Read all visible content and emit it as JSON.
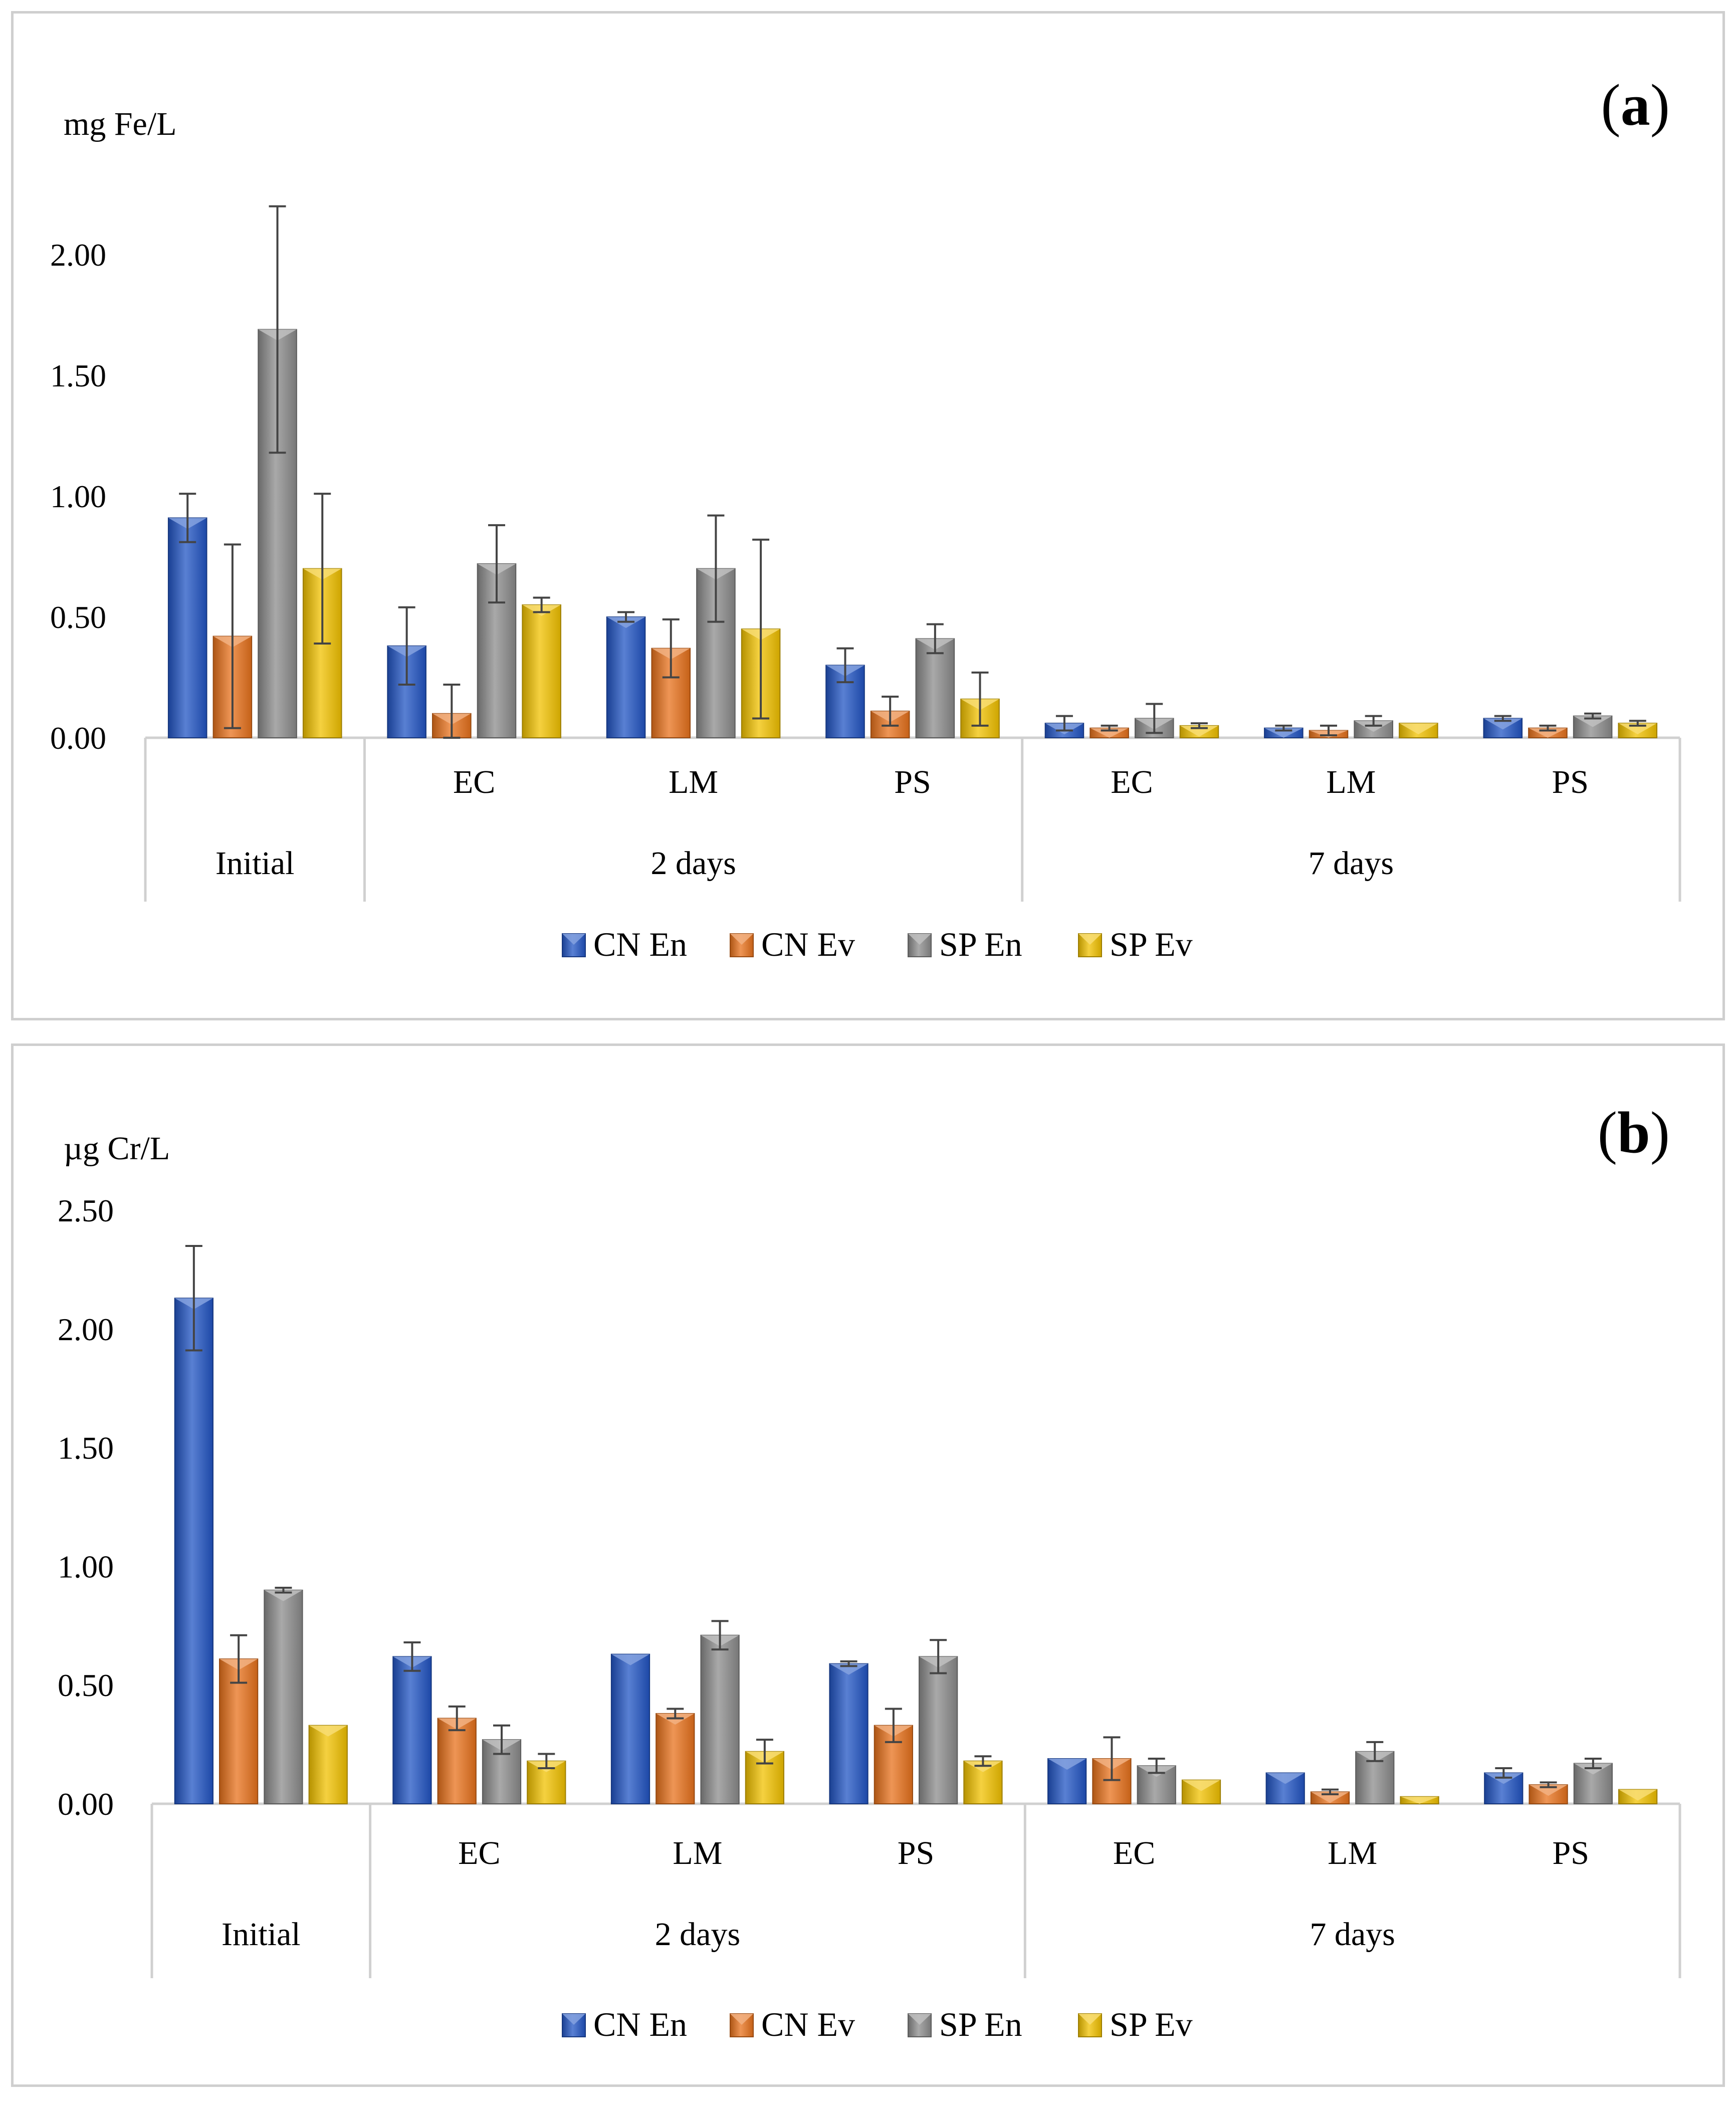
{
  "chart_data": [
    {
      "type": "bar",
      "panel_label": "(a)",
      "panel_letter": "a",
      "ylabel": "mg Fe/L",
      "ylim": [
        0,
        2.0
      ],
      "yticks": [
        "0.00",
        "0.50",
        "1.00",
        "1.50",
        "2.00"
      ],
      "categories": [
        "Initial",
        "2 days EC",
        "2 days LM",
        "2 days PS",
        "7 days EC",
        "7 days LM",
        "7 days PS"
      ],
      "category_labels": [
        "",
        "EC",
        "LM",
        "PS",
        "EC",
        "LM",
        "PS"
      ],
      "groups": [
        "Initial",
        "2 days",
        "7 days"
      ],
      "series": [
        {
          "name": "CN En",
          "color": "#2255c4",
          "values": [
            0.91,
            0.38,
            0.5,
            0.3,
            0.06,
            0.04,
            0.08
          ],
          "errors": [
            0.1,
            0.16,
            0.02,
            0.07,
            0.03,
            0.01,
            0.01
          ]
        },
        {
          "name": "CN Ev",
          "color": "#e8721c",
          "values": [
            0.42,
            0.1,
            0.37,
            0.11,
            0.04,
            0.03,
            0.04
          ],
          "errors": [
            0.38,
            0.12,
            0.12,
            0.06,
            0.01,
            0.02,
            0.01
          ]
        },
        {
          "name": "SP En",
          "color": "#8c8c8c",
          "values": [
            1.69,
            0.72,
            0.7,
            0.41,
            0.08,
            0.07,
            0.09
          ],
          "errors": [
            0.51,
            0.16,
            0.22,
            0.06,
            0.06,
            0.02,
            0.01
          ]
        },
        {
          "name": "SP Ev",
          "color": "#f2c200",
          "values": [
            0.7,
            0.55,
            0.45,
            0.16,
            0.05,
            0.06,
            0.06
          ],
          "errors": [
            0.31,
            0.03,
            0.37,
            0.11,
            0.01,
            0.0,
            0.01
          ]
        }
      ]
    },
    {
      "type": "bar",
      "panel_label": "(b)",
      "panel_letter": "b",
      "ylabel": "µg Cr/L",
      "ylim": [
        0,
        2.5
      ],
      "yticks": [
        "0.00",
        "0.50",
        "1.00",
        "1.50",
        "2.00",
        "2.50"
      ],
      "categories": [
        "Initial",
        "2 days EC",
        "2 days LM",
        "2 days PS",
        "7 days EC",
        "7 days LM",
        "7 days PS"
      ],
      "category_labels": [
        "",
        "EC",
        "LM",
        "PS",
        "EC",
        "LM",
        "PS"
      ],
      "groups": [
        "Initial",
        "2 days",
        "7 days"
      ],
      "series": [
        {
          "name": "CN En",
          "color": "#2255c4",
          "values": [
            2.13,
            0.62,
            0.63,
            0.59,
            0.19,
            0.13,
            0.13
          ],
          "errors": [
            0.22,
            0.06,
            0.0,
            0.01,
            0.0,
            0.0,
            0.02
          ]
        },
        {
          "name": "CN Ev",
          "color": "#e8721c",
          "values": [
            0.61,
            0.36,
            0.38,
            0.33,
            0.19,
            0.05,
            0.08
          ],
          "errors": [
            0.1,
            0.05,
            0.02,
            0.07,
            0.09,
            0.01,
            0.01
          ]
        },
        {
          "name": "SP En",
          "color": "#8c8c8c",
          "values": [
            0.9,
            0.27,
            0.71,
            0.62,
            0.16,
            0.22,
            0.17
          ],
          "errors": [
            0.01,
            0.06,
            0.06,
            0.07,
            0.03,
            0.04,
            0.02
          ]
        },
        {
          "name": "SP Ev",
          "color": "#f2c200",
          "values": [
            0.33,
            0.18,
            0.22,
            0.18,
            0.1,
            0.03,
            0.06
          ],
          "errors": [
            0.0,
            0.03,
            0.05,
            0.02,
            0.0,
            0.0,
            0.0
          ]
        }
      ]
    }
  ]
}
